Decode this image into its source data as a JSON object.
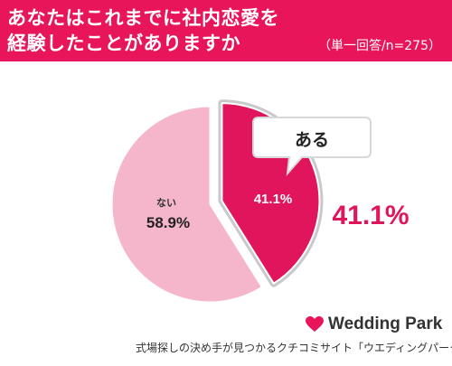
{
  "header": {
    "title_line1": "あなたはこれまでに社内恋愛を",
    "title_line2": "経験したことがありますか",
    "subtitle": "（単一回答/n=275）"
  },
  "chart_data": {
    "type": "pie",
    "title": "あなたはこれまでに社内恋愛を経験したことがありますか",
    "subtitle": "（単一回答/n=275）",
    "slices": [
      {
        "label": "ある",
        "value": 41.1,
        "display": "41.1%",
        "color": "#e0155b",
        "exploded": true
      },
      {
        "label": "ない",
        "value": 58.9,
        "display": "58.9%",
        "color": "#f5b6cb",
        "exploded": false
      }
    ],
    "callout": {
      "text": "ある",
      "value_label": "41.1%",
      "color": "#e0155b"
    }
  },
  "footer": {
    "brand": "Wedding Park",
    "caption": "式場探しの決め手が見つかるクチコミサイト「ウエディングパーク」",
    "brand_icon": "heart-icon"
  }
}
